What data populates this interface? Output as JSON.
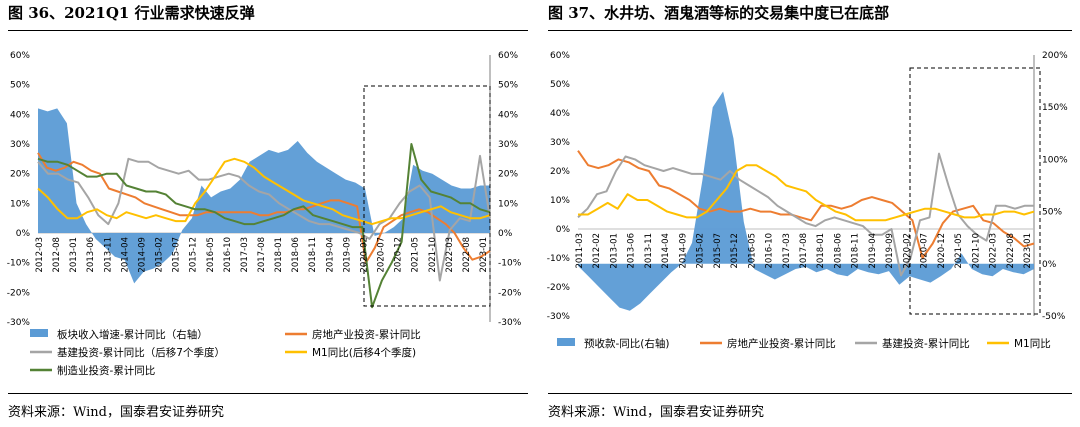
{
  "left_panel": {
    "title": "图 36、2021Q1 行业需求快速反弹",
    "source": "资料来源：Wind，国泰君安证券研究"
  },
  "right_panel": {
    "title": "图 37、水井坊、酒鬼酒等标的交易集中度已在底部",
    "source": "资料来源：Wind，国泰君安证券研究"
  },
  "chart_data": [
    {
      "type": "line",
      "title": "图 36、2021Q1 行业需求快速反弹",
      "y_left_range": [
        -30,
        60
      ],
      "y_right_range": [
        -30,
        60
      ],
      "y_left_ticks": [
        "-30%",
        "-20%",
        "-10%",
        "0%",
        "10%",
        "20%",
        "30%",
        "40%",
        "50%",
        "60%"
      ],
      "y_right_ticks": [
        "-30%",
        "-20%",
        "-10%",
        "0%",
        "10%",
        "20%",
        "30%",
        "40%",
        "50%",
        "60%"
      ],
      "x_labels": [
        "2012-03",
        "2012-08",
        "2013-01",
        "2013-06",
        "2013-11",
        "2014-04",
        "2014-09",
        "2015-02",
        "2015-07",
        "2015-12",
        "2016-05",
        "2016-10",
        "2017-03",
        "2017-08",
        "2018-01",
        "2018-06",
        "2018-11",
        "2019-04",
        "2019-09",
        "2020-02",
        "2020-07",
        "2020-12",
        "2021-05",
        "2021-10",
        "2022-03",
        "2022-08",
        "2023-01"
      ],
      "series": [
        {
          "name": "板块收入增速-累计同比（右轴）",
          "kind": "area",
          "axis": "right",
          "color": "#5B9BD5",
          "values": [
            42,
            41,
            42,
            37,
            10,
            3,
            -2,
            -5,
            -8,
            -9,
            -17,
            -13,
            -12,
            -10,
            -7,
            1,
            5,
            16,
            12,
            14,
            15,
            18,
            24,
            26,
            28,
            27,
            28,
            31,
            27,
            24,
            22,
            20,
            18,
            17,
            15,
            -1,
            0,
            2,
            5,
            23,
            21,
            20,
            18,
            16,
            15,
            15,
            16,
            16
          ]
        },
        {
          "name": "房地产业投资-累计同比",
          "kind": "line",
          "axis": "left",
          "color": "#ED7D31",
          "values": [
            27,
            22,
            21,
            22,
            24,
            23,
            21,
            20,
            15,
            14,
            13,
            12,
            10,
            9,
            8,
            7,
            6,
            6,
            6,
            7,
            7,
            7,
            7,
            7,
            7,
            6,
            6,
            7,
            7,
            8,
            8,
            9,
            10,
            11,
            11,
            10,
            9,
            -10,
            -5,
            2,
            4,
            6,
            7,
            8,
            7,
            5,
            3,
            0,
            -5,
            -9,
            -8,
            -6
          ]
        },
        {
          "name": "基建投资-累计同比（后移7个季度）",
          "kind": "line",
          "axis": "left",
          "color": "#A5A5A5",
          "values": [
            24,
            20,
            20,
            18,
            17,
            12,
            6,
            3,
            10,
            25,
            24,
            24,
            22,
            21,
            20,
            21,
            18,
            18,
            19,
            20,
            19,
            16,
            14,
            13,
            10,
            8,
            6,
            4,
            3,
            3,
            2,
            1,
            0,
            -2,
            3,
            5,
            10,
            14,
            16,
            12,
            -16,
            1,
            5,
            4,
            26,
            5
          ]
        },
        {
          "name": "M1同比(后移4个季度)",
          "kind": "line",
          "axis": "left",
          "color": "#FFC000",
          "values": [
            15,
            12,
            8,
            5,
            5,
            7,
            8,
            6,
            5,
            7,
            6,
            5,
            6,
            5,
            4,
            4,
            10,
            14,
            19,
            24,
            25,
            24,
            22,
            19,
            17,
            15,
            13,
            11,
            10,
            9,
            8,
            6,
            5,
            4,
            3,
            4,
            5,
            5,
            6,
            7,
            8,
            9,
            7,
            6,
            5,
            5,
            6
          ]
        },
        {
          "name": "制造业投资-累计同比",
          "kind": "line",
          "axis": "left",
          "color": "#548235",
          "values": [
            25,
            24,
            24,
            23,
            21,
            19,
            19,
            20,
            20,
            16,
            15,
            14,
            14,
            13,
            10,
            9,
            8,
            8,
            7,
            5,
            4,
            3,
            3,
            4,
            5,
            6,
            8,
            9,
            6,
            5,
            4,
            3,
            2,
            2,
            -25,
            -16,
            -10,
            -3,
            30,
            18,
            14,
            13,
            12,
            10,
            10,
            8,
            7
          ]
        }
      ],
      "legend": [
        {
          "label": "板块收入增速-累计同比（右轴）",
          "kind": "area",
          "color": "#5B9BD5"
        },
        {
          "label": "房地产业投资-累计同比",
          "kind": "line",
          "color": "#ED7D31"
        },
        {
          "label": "基建投资-累计同比（后移7个季度）",
          "kind": "line",
          "color": "#A5A5A5"
        },
        {
          "label": "M1同比(后移4个季度)",
          "kind": "line",
          "color": "#FFC000"
        },
        {
          "label": "制造业投资-累计同比",
          "kind": "line",
          "color": "#548235"
        }
      ]
    },
    {
      "type": "line",
      "title": "图 37、水井坊、酒鬼酒等标的交易集中度已在底部",
      "y_left_range": [
        -30,
        60
      ],
      "y_right_range": [
        -50,
        200
      ],
      "y_left_ticks": [
        "-30%",
        "-20%",
        "-10%",
        "0%",
        "10%",
        "20%",
        "30%",
        "40%",
        "50%",
        "60%"
      ],
      "y_right_ticks": [
        "-50%",
        "0%",
        "50%",
        "100%",
        "150%",
        "200%"
      ],
      "x_labels": [
        "2011-03",
        "2012-02",
        "2013-01",
        "2013-06",
        "2013-11",
        "2014-04",
        "2014-09",
        "2015-02",
        "2015-07",
        "2015-12",
        "2016-05",
        "2016-10",
        "2017-03",
        "2017-08",
        "2018-01",
        "2018-06",
        "2018-11",
        "2019-04",
        "2019-09",
        "2020-02",
        "2020-07",
        "2020-12",
        "2021-05",
        "2021-10",
        "2022-03",
        "2022-08",
        "2023-01"
      ],
      "series": [
        {
          "name": "预收款-同比(右轴)",
          "kind": "area",
          "axis": "right",
          "color": "#5B9BD5",
          "values": [
            -2,
            -12,
            -22,
            -32,
            -42,
            -45,
            -38,
            -28,
            -18,
            -8,
            0,
            20,
            80,
            150,
            165,
            120,
            40,
            -5,
            -10,
            -15,
            -10,
            -5,
            -3,
            -8,
            -5,
            -10,
            -12,
            -5,
            -8,
            -10,
            -7,
            -20,
            -12,
            -15,
            -18,
            -12,
            -5,
            10,
            -5,
            -10,
            -12,
            -5,
            -8,
            -10,
            -5
          ]
        },
        {
          "name": "房地产业投资-累计同比",
          "kind": "line",
          "axis": "left",
          "color": "#ED7D31",
          "values": [
            27,
            22,
            21,
            22,
            24,
            23,
            21,
            20,
            15,
            14,
            12,
            10,
            7,
            6,
            7,
            6,
            6,
            7,
            6,
            6,
            5,
            5,
            4,
            3,
            8,
            8,
            7,
            8,
            10,
            11,
            10,
            9,
            6,
            3,
            -10,
            -5,
            2,
            6,
            7,
            8,
            3,
            2,
            -1,
            -3,
            -6,
            -5
          ]
        },
        {
          "name": "基建投资-累计同比",
          "kind": "line",
          "axis": "left",
          "color": "#A5A5A5",
          "values": [
            4,
            7,
            12,
            13,
            20,
            25,
            24,
            22,
            21,
            20,
            21,
            20,
            19,
            19,
            18,
            17,
            20,
            17,
            15,
            13,
            11,
            8,
            6,
            4,
            2,
            1,
            3,
            4,
            3,
            2,
            1,
            -2,
            -2,
            0,
            -16,
            -10,
            3,
            4,
            26,
            15,
            5,
            1,
            -2,
            -4,
            8,
            8,
            7,
            8,
            8
          ]
        },
        {
          "name": "M1同比",
          "kind": "line",
          "axis": "left",
          "color": "#FFC000",
          "values": [
            5,
            5,
            7,
            9,
            7,
            12,
            10,
            10,
            8,
            6,
            5,
            4,
            4,
            6,
            10,
            14,
            20,
            22,
            22,
            20,
            18,
            15,
            14,
            13,
            10,
            8,
            6,
            5,
            3,
            3,
            3,
            3,
            4,
            5,
            6,
            7,
            7,
            6,
            5,
            4,
            4,
            5,
            5,
            6,
            6,
            5,
            6
          ]
        }
      ],
      "legend": [
        {
          "label": "预收款-同比(右轴)",
          "kind": "area",
          "color": "#5B9BD5"
        },
        {
          "label": "房地产业投资-累计同比",
          "kind": "line",
          "color": "#ED7D31"
        },
        {
          "label": "基建投资-累计同比",
          "kind": "line",
          "color": "#A5A5A5"
        },
        {
          "label": "M1同比",
          "kind": "line",
          "color": "#FFC000"
        }
      ]
    }
  ]
}
